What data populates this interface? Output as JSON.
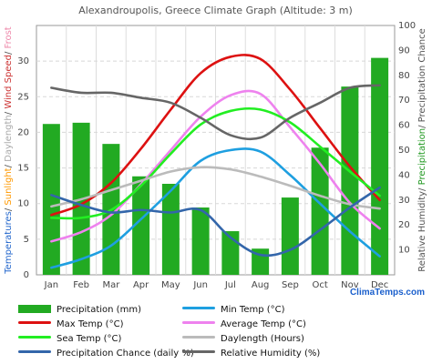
{
  "chart_data": {
    "type": "bar+line",
    "title": "Alexandroupolis, Greece Climate Graph (Altitude: 3 m)",
    "categories": [
      "Jan",
      "Feb",
      "Mar",
      "Apr",
      "May",
      "Jun",
      "Jul",
      "Aug",
      "Sep",
      "Oct",
      "Nov",
      "Dec"
    ],
    "left_axis": {
      "ylim": [
        0,
        35
      ],
      "ticks": [
        0,
        5,
        10,
        15,
        20,
        25,
        30
      ],
      "label_parts": [
        {
          "text": "Temperatures",
          "color": "#2266cc"
        },
        {
          "text": "/ ",
          "color": "#555555"
        },
        {
          "text": "Sunlight",
          "color": "#ff9900"
        },
        {
          "text": "/ ",
          "color": "#555555"
        },
        {
          "text": "Daylength",
          "color": "#aaaaaa"
        },
        {
          "text": "/ ",
          "color": "#555555"
        },
        {
          "text": "Wind Speed",
          "color": "#cc3333"
        },
        {
          "text": "/ ",
          "color": "#555555"
        },
        {
          "text": "Frost",
          "color": "#ee88aa"
        }
      ]
    },
    "right_axis": {
      "ylim": [
        0,
        100
      ],
      "ticks": [
        10,
        20,
        30,
        40,
        50,
        60,
        70,
        80,
        90,
        100
      ],
      "label_parts": [
        {
          "text": "Relative Humidity",
          "color": "#555555"
        },
        {
          "text": "/ ",
          "color": "#555555"
        },
        {
          "text": "Precipitation",
          "color": "#229922"
        },
        {
          "text": "/ Precipitation Chance",
          "color": "#555555"
        }
      ]
    },
    "bars": {
      "name": "Precipitation (mm)",
      "color": "#22aa22",
      "axis": "right",
      "values": [
        60.5,
        61.0,
        52.5,
        39.5,
        36.5,
        27.0,
        17.5,
        10.5,
        31.0,
        51.0,
        75.5,
        87.0
      ]
    },
    "series": [
      {
        "name": "Max Temp (°C)",
        "color": "#dd1111",
        "axis": "left",
        "values": [
          8.4,
          9.9,
          12.9,
          17.7,
          23.2,
          28.3,
          30.6,
          30.3,
          26.0,
          20.6,
          15.2,
          10.5
        ]
      },
      {
        "name": "Min Temp (°C)",
        "color": "#1e9fe0",
        "axis": "left",
        "values": [
          1.0,
          2.2,
          4.1,
          7.8,
          11.8,
          16.0,
          17.5,
          17.3,
          14.0,
          10.0,
          6.1,
          2.6
        ]
      },
      {
        "name": "Average Temp (°C)",
        "color": "#ee82ee",
        "axis": "left",
        "values": [
          4.7,
          6.0,
          8.4,
          12.7,
          17.5,
          22.2,
          25.2,
          25.4,
          20.7,
          15.6,
          10.1,
          6.5
        ]
      },
      {
        "name": "Sea Temp (°C)",
        "color": "#22ee22",
        "axis": "left",
        "values": [
          8.0,
          8.0,
          9.1,
          12.5,
          17.0,
          21.1,
          23.0,
          23.2,
          21.4,
          18.0,
          14.5,
          11.1
        ]
      },
      {
        "name": "Daylength (Hours)",
        "color": "#bbbbbb",
        "axis": "left",
        "values": [
          9.6,
          10.6,
          11.9,
          13.2,
          14.5,
          15.1,
          14.8,
          13.8,
          12.5,
          11.1,
          9.9,
          9.3
        ]
      },
      {
        "name": "Precipitation Chance (daily %)",
        "color": "#3366aa",
        "axis": "right",
        "values": [
          32,
          28,
          25,
          26,
          25,
          26,
          15,
          8,
          10,
          18,
          27,
          35
        ]
      },
      {
        "name": "Relative Humidity (%)",
        "color": "#666666",
        "axis": "right",
        "values": [
          75,
          73,
          73,
          71,
          69,
          63,
          56,
          55,
          63,
          69,
          75,
          76
        ]
      }
    ],
    "grid": true,
    "legend_position": "bottom"
  },
  "legend": [
    {
      "label": "Precipitation (mm)",
      "color": "#22aa22",
      "kind": "bar"
    },
    {
      "label": "Min Temp (°C)",
      "color": "#1e9fe0",
      "kind": "line"
    },
    {
      "label": "Max Temp (°C)",
      "color": "#dd1111",
      "kind": "line"
    },
    {
      "label": "Average Temp (°C)",
      "color": "#ee82ee",
      "kind": "line"
    },
    {
      "label": "Sea Temp (°C)",
      "color": "#22ee22",
      "kind": "line"
    },
    {
      "label": "Daylength (Hours)",
      "color": "#bbbbbb",
      "kind": "line"
    },
    {
      "label": "Precipitation Chance (daily %)",
      "color": "#3366aa",
      "kind": "line"
    },
    {
      "label": "Relative Humidity (%)",
      "color": "#666666",
      "kind": "line"
    }
  ],
  "brand": "ClimaTemps.com"
}
